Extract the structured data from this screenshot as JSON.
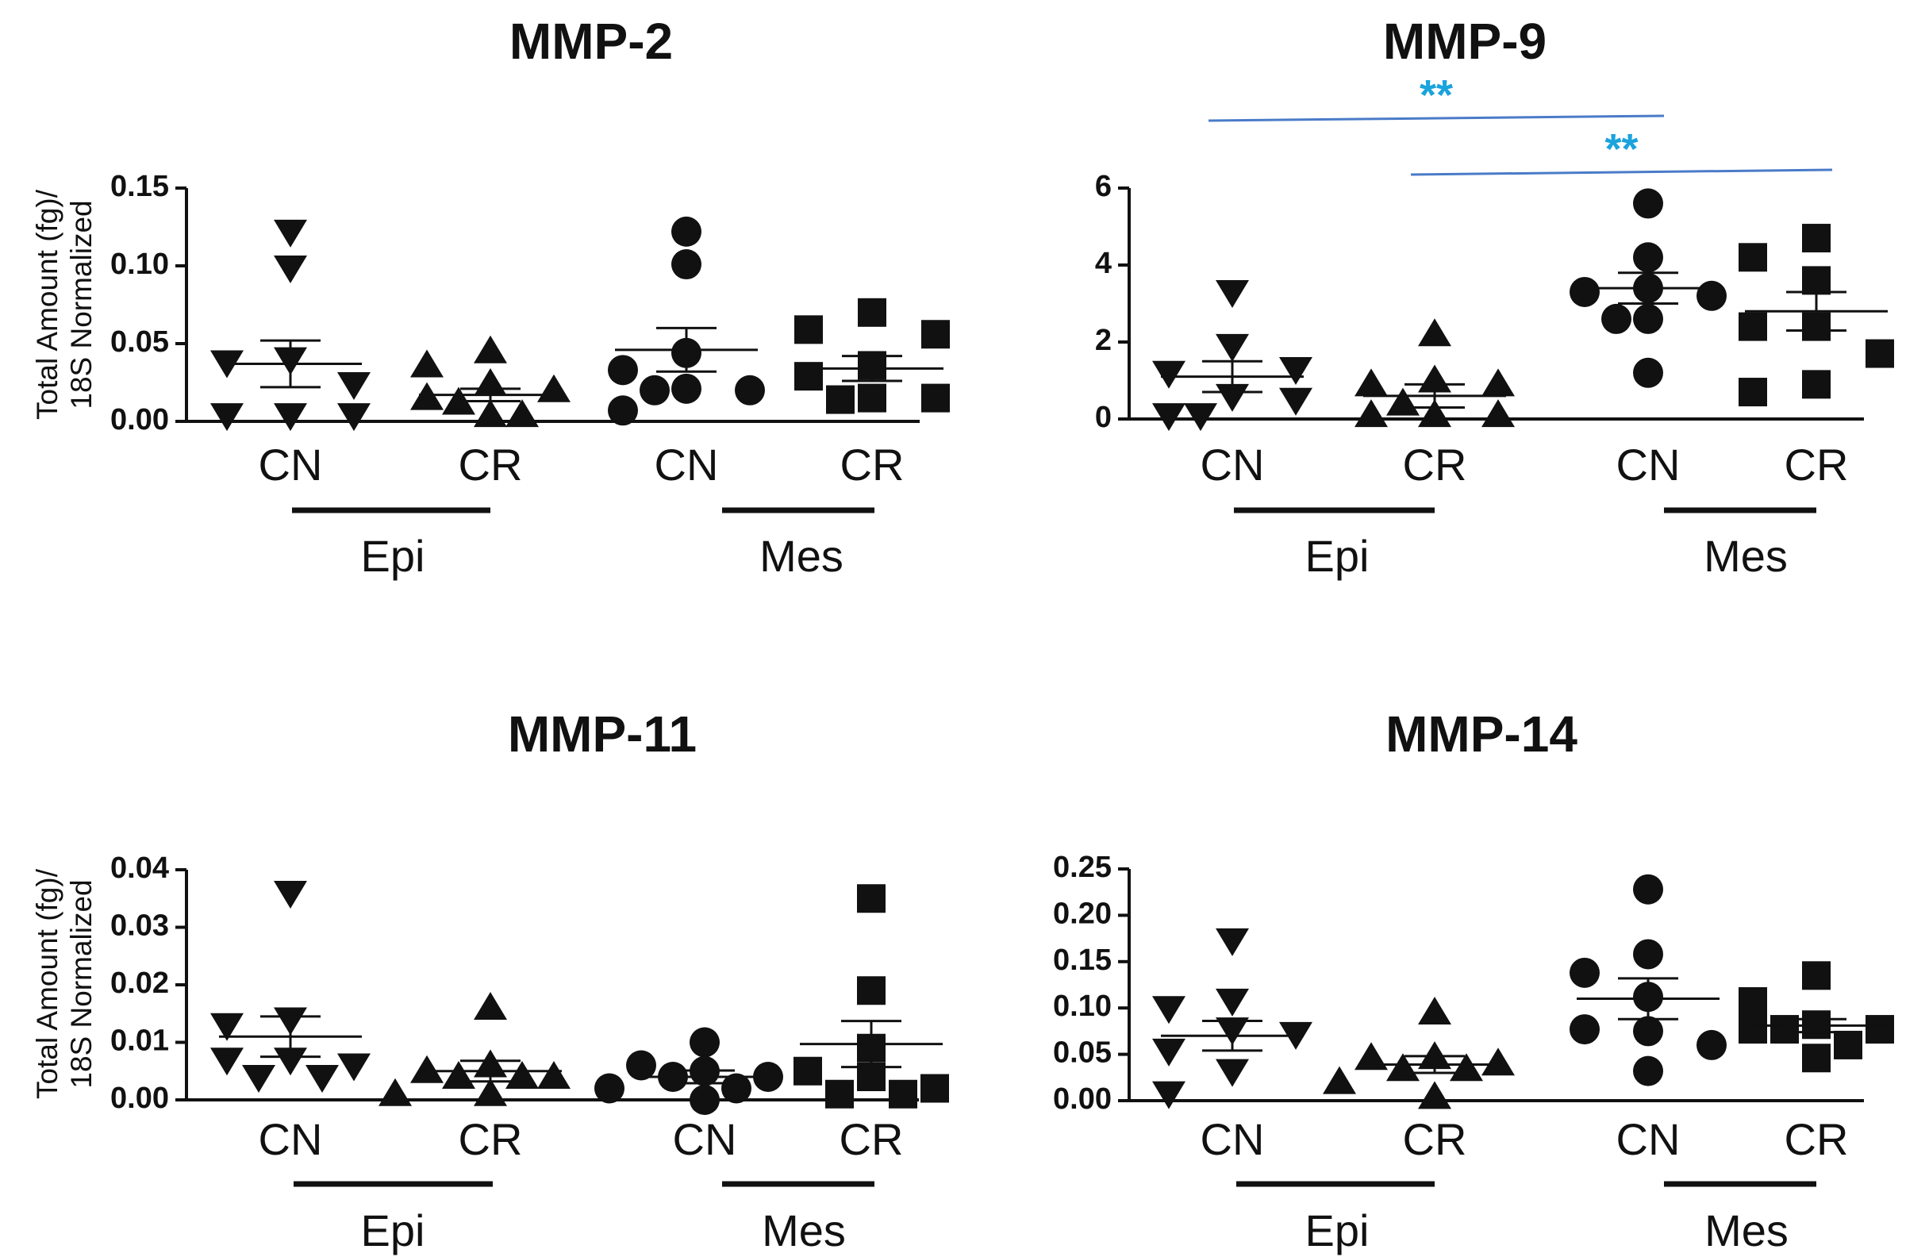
{
  "chart_data": [
    {
      "type": "scatter",
      "title": "MMP-2",
      "ylabel_lines": [
        "Total Amount (fg)/",
        "18S Normalized"
      ],
      "ylim": [
        0,
        0.15
      ],
      "yticks": [
        0.0,
        0.05,
        0.1,
        0.15
      ],
      "ytick_labels": [
        "0.00",
        "0.05",
        "0.10",
        "0.15"
      ],
      "categories": [
        "CN",
        "CR",
        "CN",
        "CR"
      ],
      "groups": [
        {
          "label": "Epi",
          "span": [
            0,
            1
          ]
        },
        {
          "label": "Mes",
          "span": [
            2,
            3
          ]
        }
      ],
      "series": [
        {
          "name": "Epi CN",
          "marker": "triangle-down",
          "values": [
            0.122,
            0.099,
            0.04,
            0.038,
            0.024,
            0.004,
            0.004,
            0.004
          ],
          "mean": 0.037,
          "sem": 0.015
        },
        {
          "name": "Epi CR",
          "marker": "triangle-up",
          "values": [
            0.045,
            0.036,
            0.024,
            0.02,
            0.015,
            0.012,
            0.004,
            0.004
          ],
          "mean": 0.017,
          "sem": 0.004
        },
        {
          "name": "Mes CN",
          "marker": "circle",
          "values": [
            0.122,
            0.101,
            0.044,
            0.033,
            0.021,
            0.02,
            0.02,
            0.007
          ],
          "mean": 0.046,
          "sem": 0.014
        },
        {
          "name": "Mes CR",
          "marker": "square",
          "values": [
            0.07,
            0.059,
            0.056,
            0.036,
            0.029,
            0.015,
            0.015,
            0.014
          ],
          "mean": 0.034,
          "sem": 0.008
        }
      ],
      "significance": []
    },
    {
      "type": "scatter",
      "title": "MMP-9",
      "ylabel_lines": [],
      "ylim": [
        0,
        6
      ],
      "yticks": [
        0,
        2,
        4,
        6
      ],
      "ytick_labels": [
        "0",
        "2",
        "4",
        "6"
      ],
      "categories": [
        "CN",
        "CR",
        "CN",
        "CR"
      ],
      "groups": [
        {
          "label": "Epi",
          "span": [
            0,
            1
          ]
        },
        {
          "label": "Mes",
          "span": [
            2,
            3
          ]
        }
      ],
      "series": [
        {
          "name": "Epi CN",
          "marker": "triangle-down",
          "values": [
            3.3,
            1.9,
            1.2,
            1.3,
            0.6,
            0.5,
            0.1,
            0.1
          ],
          "mean": 1.1,
          "sem": 0.4
        },
        {
          "name": "Epi CR",
          "marker": "triangle-up",
          "values": [
            2.2,
            1.0,
            0.9,
            0.9,
            0.4,
            0.1,
            0.1,
            0.1
          ],
          "mean": 0.6,
          "sem": 0.3
        },
        {
          "name": "Mes CN",
          "marker": "circle",
          "values": [
            5.6,
            4.2,
            3.4,
            3.3,
            3.2,
            2.6,
            2.6,
            1.2
          ],
          "mean": 3.4,
          "sem": 0.4
        },
        {
          "name": "Mes CR",
          "marker": "square",
          "values": [
            4.7,
            4.2,
            3.6,
            2.4,
            2.4,
            1.7,
            0.9,
            0.7
          ],
          "mean": 2.8,
          "sem": 0.5
        }
      ],
      "significance": [
        {
          "from": 0,
          "to": 2,
          "label": "**",
          "level": 0
        },
        {
          "from": 1,
          "to": 3,
          "label": "**",
          "level": 1
        }
      ]
    },
    {
      "type": "scatter",
      "title": "MMP-11",
      "ylabel_lines": [
        "Total Amount (fg)/",
        "18S Normalized"
      ],
      "ylim": [
        0,
        0.04
      ],
      "yticks": [
        0.0,
        0.01,
        0.02,
        0.03,
        0.04
      ],
      "ytick_labels": [
        "0.00",
        "0.01",
        "0.02",
        "0.03",
        "0.04"
      ],
      "categories": [
        "CN",
        "CR",
        "CN",
        "CR"
      ],
      "groups": [
        {
          "label": "Epi",
          "span": [
            0,
            1
          ]
        },
        {
          "label": "Mes",
          "span": [
            2,
            3
          ]
        }
      ],
      "series": [
        {
          "name": "Epi CN",
          "marker": "triangle-down",
          "values": [
            0.036,
            0.014,
            0.013,
            0.007,
            0.007,
            0.006,
            0.004,
            0.004
          ],
          "mean": 0.011,
          "sem": 0.0035
        },
        {
          "name": "Epi CR",
          "marker": "triangle-up",
          "values": [
            0.016,
            0.006,
            0.005,
            0.004,
            0.004,
            0.004,
            0.001,
            0.001
          ],
          "mean": 0.005,
          "sem": 0.0018
        },
        {
          "name": "Mes CN",
          "marker": "circle",
          "values": [
            0.01,
            0.006,
            0.005,
            0.004,
            0.004,
            0.002,
            0.002,
            0.0
          ],
          "mean": 0.004,
          "sem": 0.0011
        },
        {
          "name": "Mes CR",
          "marker": "square",
          "values": [
            0.035,
            0.019,
            0.009,
            0.005,
            0.004,
            0.002,
            0.001,
            0.001
          ],
          "mean": 0.0097,
          "sem": 0.004
        }
      ],
      "significance": []
    },
    {
      "type": "scatter",
      "title": "MMP-14",
      "ylabel_lines": [],
      "ylim": [
        0,
        0.25
      ],
      "yticks": [
        0.0,
        0.05,
        0.1,
        0.15,
        0.2,
        0.25
      ],
      "ytick_labels": [
        "0.00",
        "0.05",
        "0.10",
        "0.15",
        "0.20",
        "0.25"
      ],
      "categories": [
        "CN",
        "CR",
        "CN",
        "CR"
      ],
      "groups": [
        {
          "label": "Epi",
          "span": [
            0,
            1
          ]
        },
        {
          "label": "Mes",
          "span": [
            2,
            3
          ]
        }
      ],
      "series": [
        {
          "name": "Epi CN",
          "marker": "triangle-down",
          "values": [
            0.173,
            0.108,
            0.1,
            0.077,
            0.072,
            0.054,
            0.032,
            0.008
          ],
          "mean": 0.07,
          "sem": 0.016
        },
        {
          "name": "Epi CR",
          "marker": "triangle-up",
          "values": [
            0.095,
            0.047,
            0.046,
            0.04,
            0.034,
            0.034,
            0.02,
            0.004
          ],
          "mean": 0.039,
          "sem": 0.009
        },
        {
          "name": "Mes CN",
          "marker": "circle",
          "values": [
            0.228,
            0.158,
            0.138,
            0.112,
            0.075,
            0.077,
            0.06,
            0.032
          ],
          "mean": 0.11,
          "sem": 0.022
        },
        {
          "name": "Mes CR",
          "marker": "square",
          "values": [
            0.135,
            0.107,
            0.082,
            0.077,
            0.077,
            0.077,
            0.06,
            0.046
          ],
          "mean": 0.081,
          "sem": 0.007
        }
      ],
      "significance": []
    }
  ],
  "colors": {
    "ink": "#111111",
    "sig_line": "#4a7bc8",
    "sig_text": "#1aa3dd"
  }
}
